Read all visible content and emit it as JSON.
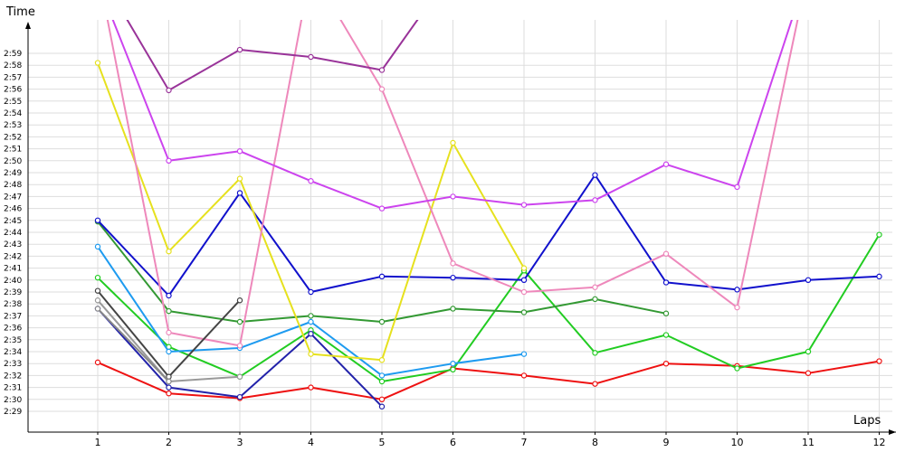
{
  "chart_data": {
    "type": "line",
    "ylabel": "Time",
    "xlabel": "Laps",
    "x": [
      1,
      2,
      3,
      4,
      5,
      6,
      7,
      8,
      9,
      10,
      11,
      12
    ],
    "x_tick_labels": [
      "1",
      "2",
      "3",
      "4",
      "5",
      "6",
      "7",
      "8",
      "9",
      "10",
      "11",
      "12"
    ],
    "y_tick_labels": [
      "2:29",
      "2:30",
      "2:31",
      "2:32",
      "2:33",
      "2:34",
      "2:35",
      "2:36",
      "2:37",
      "2:38",
      "2:39",
      "2:40",
      "2:41",
      "2:42",
      "2:43",
      "2:44",
      "2:45",
      "2:46",
      "2:47",
      "2:48",
      "2:49",
      "2:50",
      "2:51",
      "2:52",
      "2:53",
      "2:54",
      "2:55",
      "2:56",
      "2:57",
      "2:58",
      "2:59"
    ],
    "y_unit": "seconds (2:29 = 149)",
    "ylim": [
      148.3,
      180.0
    ],
    "xlim": [
      0,
      12
    ],
    "grid": true,
    "legend": "none",
    "series": [
      {
        "color": "#ee1111",
        "values": [
          153.1,
          150.5,
          150.1,
          151.0,
          150.0,
          152.6,
          152.0,
          151.3,
          153.0,
          152.8,
          152.2,
          153.2
        ]
      },
      {
        "color": "#22cc22",
        "values": [
          160.2,
          154.4,
          151.9,
          155.8,
          151.5,
          152.5,
          160.8,
          153.9,
          155.4,
          152.6,
          154.0,
          163.8
        ]
      },
      {
        "color": "#339933",
        "values": [
          164.9,
          157.4,
          156.5,
          157.0,
          156.5,
          157.6,
          157.3,
          158.4,
          157.2,
          null,
          null,
          null
        ]
      },
      {
        "color": "#1111cc",
        "values": [
          165.0,
          158.7,
          167.3,
          159.0,
          160.3,
          160.2,
          160.0,
          168.8,
          159.8,
          159.2,
          160.0,
          160.3
        ]
      },
      {
        "color": "#2222aa",
        "values": [
          157.6,
          151.0,
          150.2,
          155.5,
          149.4,
          null,
          null,
          null,
          null,
          null,
          null,
          null
        ]
      },
      {
        "color": "#1e9bf0",
        "values": [
          162.8,
          154.0,
          154.3,
          156.5,
          152.0,
          153.0,
          153.8,
          null,
          null,
          null,
          null,
          null
        ]
      },
      {
        "color": "#e6e11e",
        "values": [
          178.2,
          162.4,
          168.5,
          153.8,
          153.3,
          171.5,
          161.0,
          null,
          null,
          null,
          null,
          null
        ]
      },
      {
        "color": "#ee88bb",
        "values": [
          186.0,
          155.6,
          154.5,
          186.0,
          176.0,
          161.4,
          159.0,
          159.4,
          162.2,
          157.7,
          186.0,
          null
        ]
      },
      {
        "color": "#cc44ee",
        "values": [
          185.0,
          170.0,
          170.8,
          168.3,
          166.0,
          167.0,
          166.3,
          166.7,
          169.7,
          167.8,
          186.0,
          null
        ]
      },
      {
        "color": "#993399",
        "values": [
          186.0,
          175.9,
          179.3,
          178.7,
          177.6,
          186.0,
          null,
          null,
          null,
          null,
          null,
          null
        ]
      },
      {
        "color": "#444444",
        "values": [
          159.1,
          151.9,
          158.3,
          null,
          null,
          null,
          null,
          null,
          null,
          null,
          null,
          null
        ]
      },
      {
        "color": "#999999",
        "values": [
          158.3,
          151.5,
          151.9,
          null,
          null,
          null,
          null,
          null,
          null,
          null,
          null,
          null
        ]
      },
      {
        "color": "#888888",
        "values": [
          157.6,
          151.5,
          null,
          null,
          null,
          null,
          null,
          null,
          null,
          null,
          null,
          null
        ]
      }
    ]
  }
}
